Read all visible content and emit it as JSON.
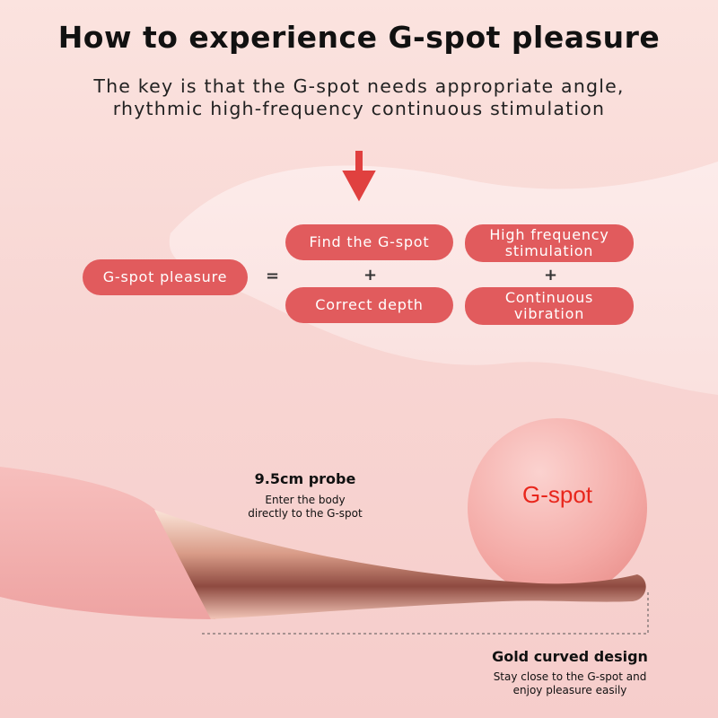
{
  "header": {
    "title": "How to experience G-spot pleasure",
    "subtitle_line1": "The key is that the G-spot needs appropriate angle,",
    "subtitle_line2": "rhythmic high-frequency continuous stimulation"
  },
  "formula": {
    "result": "G-spot pleasure",
    "equals": "=",
    "plus": "+",
    "items": [
      "Find the G-spot",
      "High frequency stimulation",
      "Correct depth",
      "Continuous vibration"
    ]
  },
  "probe": {
    "title": "9.5cm probe",
    "desc_line1": "Enter the body",
    "desc_line2": "directly to the G-spot"
  },
  "ball": {
    "label": "G-spot"
  },
  "design": {
    "title": "Gold curved design",
    "desc_line1": "Stay close to the G-spot and",
    "desc_line2": "enjoy pleasure easily"
  },
  "colors": {
    "accent": "#e15b5d",
    "ball_text": "#e8261c"
  }
}
